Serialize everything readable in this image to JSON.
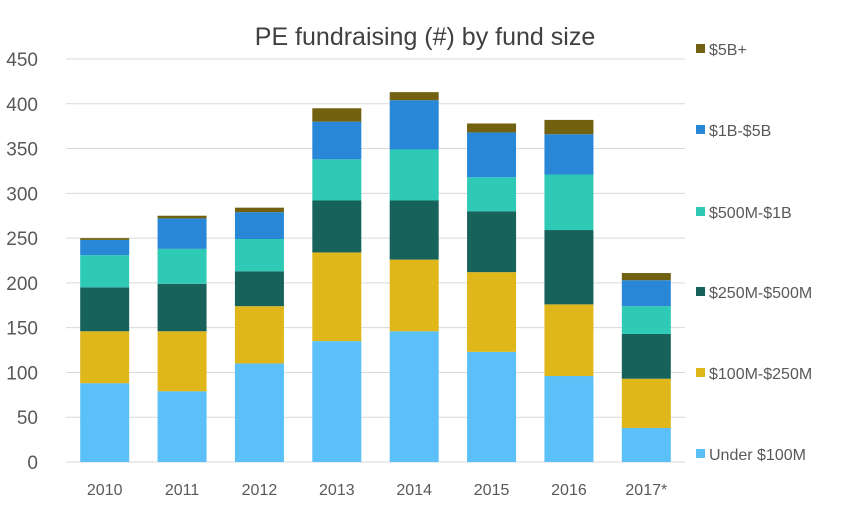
{
  "chart_data": {
    "type": "bar",
    "stacked": true,
    "title": "PE fundraising (#) by fund size",
    "xlabel": "",
    "ylabel": "",
    "categories": [
      "2010",
      "2011",
      "2012",
      "2013",
      "2014",
      "2015",
      "2016",
      "2017*"
    ],
    "ylim": [
      0,
      450
    ],
    "yticks": [
      0,
      50,
      100,
      150,
      200,
      250,
      300,
      350,
      400,
      450
    ],
    "ytick_labels": [
      "0",
      "50",
      "100",
      "150",
      "200",
      "250",
      "300",
      "350",
      "400",
      "450"
    ],
    "grid": true,
    "legend_position": "right",
    "series": [
      {
        "name": "Under $100M",
        "color": "#5bc0f8",
        "values": [
          88,
          79,
          110,
          135,
          146,
          123,
          96,
          38
        ]
      },
      {
        "name": "$100M-$250M",
        "color": "#e0b71b",
        "values": [
          58,
          67,
          64,
          99,
          80,
          89,
          80,
          55
        ]
      },
      {
        "name": "$250M-$500M",
        "color": "#17635c",
        "values": [
          49,
          53,
          39,
          58,
          66,
          68,
          83,
          50
        ]
      },
      {
        "name": "$500M-$1B",
        "color": "#2ecab6",
        "values": [
          36,
          39,
          36,
          46,
          57,
          38,
          62,
          31
        ]
      },
      {
        "name": "$1B-$5B",
        "color": "#2887d6",
        "values": [
          17,
          34,
          30,
          42,
          55,
          50,
          45,
          29
        ]
      },
      {
        "name": "$5B+",
        "color": "#726110",
        "values": [
          2,
          3,
          5,
          15,
          9,
          10,
          16,
          8
        ]
      }
    ]
  },
  "colors": {
    "grid": "#d9d9d9",
    "axis_text": "#595959",
    "title_text": "#404040"
  }
}
